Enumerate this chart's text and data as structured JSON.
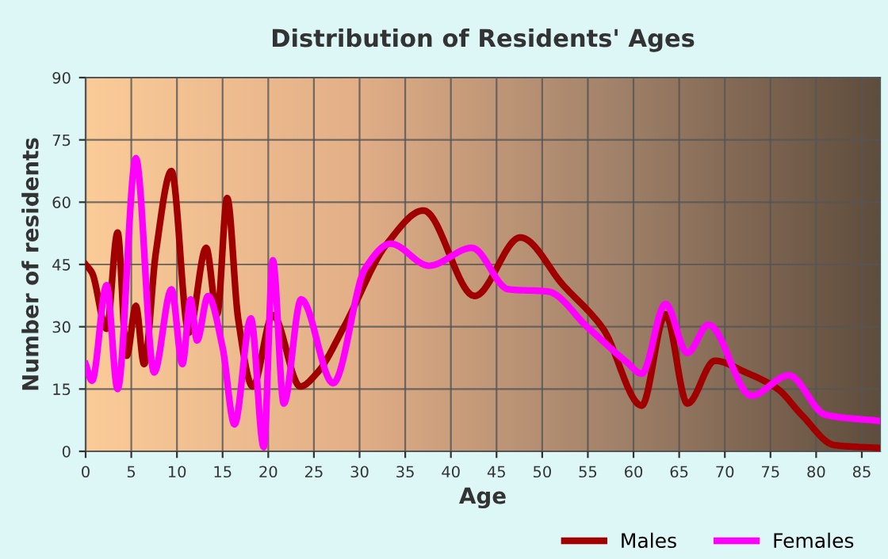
{
  "chart_data": {
    "type": "line",
    "title": "Distribution of Residents' Ages",
    "xlabel": "Age",
    "ylabel": "Number of residents",
    "xlim": [
      0,
      87
    ],
    "ylim": [
      0,
      90
    ],
    "xticks": [
      0,
      5,
      10,
      15,
      20,
      25,
      30,
      35,
      40,
      45,
      50,
      55,
      60,
      65,
      70,
      75,
      80,
      85
    ],
    "yticks": [
      0,
      15,
      30,
      45,
      60,
      75,
      90
    ],
    "grid": true,
    "legend": "bottom right",
    "marker": "none",
    "line_style": "solid",
    "series": [
      {
        "name": "Males",
        "color": "#a00000",
        "x": [
          0,
          0.7,
          2.3,
          3.5,
          4.5,
          5.5,
          6.4,
          7.7,
          9.4,
          11.3,
          13.2,
          14.4,
          15.5,
          16.7,
          18.3,
          20.5,
          23.5,
          25.4,
          28.3,
          33,
          37,
          42.6,
          47.6,
          52.3,
          56.7,
          60.9,
          63.5,
          65.9,
          68.9,
          72.3,
          75.8,
          78.4,
          82,
          87
        ],
        "values": [
          45,
          43,
          29.5,
          52.7,
          23,
          35,
          21,
          48,
          67.5,
          28.6,
          49,
          33,
          61,
          32,
          15.6,
          32.8,
          15.6,
          19,
          30,
          50,
          58,
          37.4,
          51.5,
          40,
          29.4,
          11,
          33,
          11.5,
          21.8,
          19,
          15,
          8.8,
          1.5,
          0.8
        ]
      },
      {
        "name": "Females",
        "color": "#ff00ff",
        "x": [
          0,
          0.7,
          2.3,
          3.5,
          5.5,
          7.5,
          9.4,
          10.6,
          11.5,
          12.2,
          13.4,
          15,
          16.3,
          18.1,
          19.5,
          20.5,
          21.7,
          23.6,
          27.1,
          30.6,
          33.4,
          37.6,
          42.3,
          46.3,
          50.6,
          55,
          59.3,
          60.9,
          63.5,
          65.9,
          68.2,
          72.9,
          77,
          81,
          87
        ],
        "values": [
          21,
          17,
          40,
          15,
          70.6,
          19,
          39,
          21,
          36.6,
          26.7,
          37.4,
          25,
          6.5,
          32,
          1,
          46,
          11.5,
          36.6,
          16.4,
          44,
          50,
          44.7,
          49,
          39,
          38.5,
          29.8,
          21.4,
          18.7,
          35.5,
          23.7,
          30.5,
          13.4,
          18.3,
          8.8,
          7.3
        ]
      }
    ]
  }
}
